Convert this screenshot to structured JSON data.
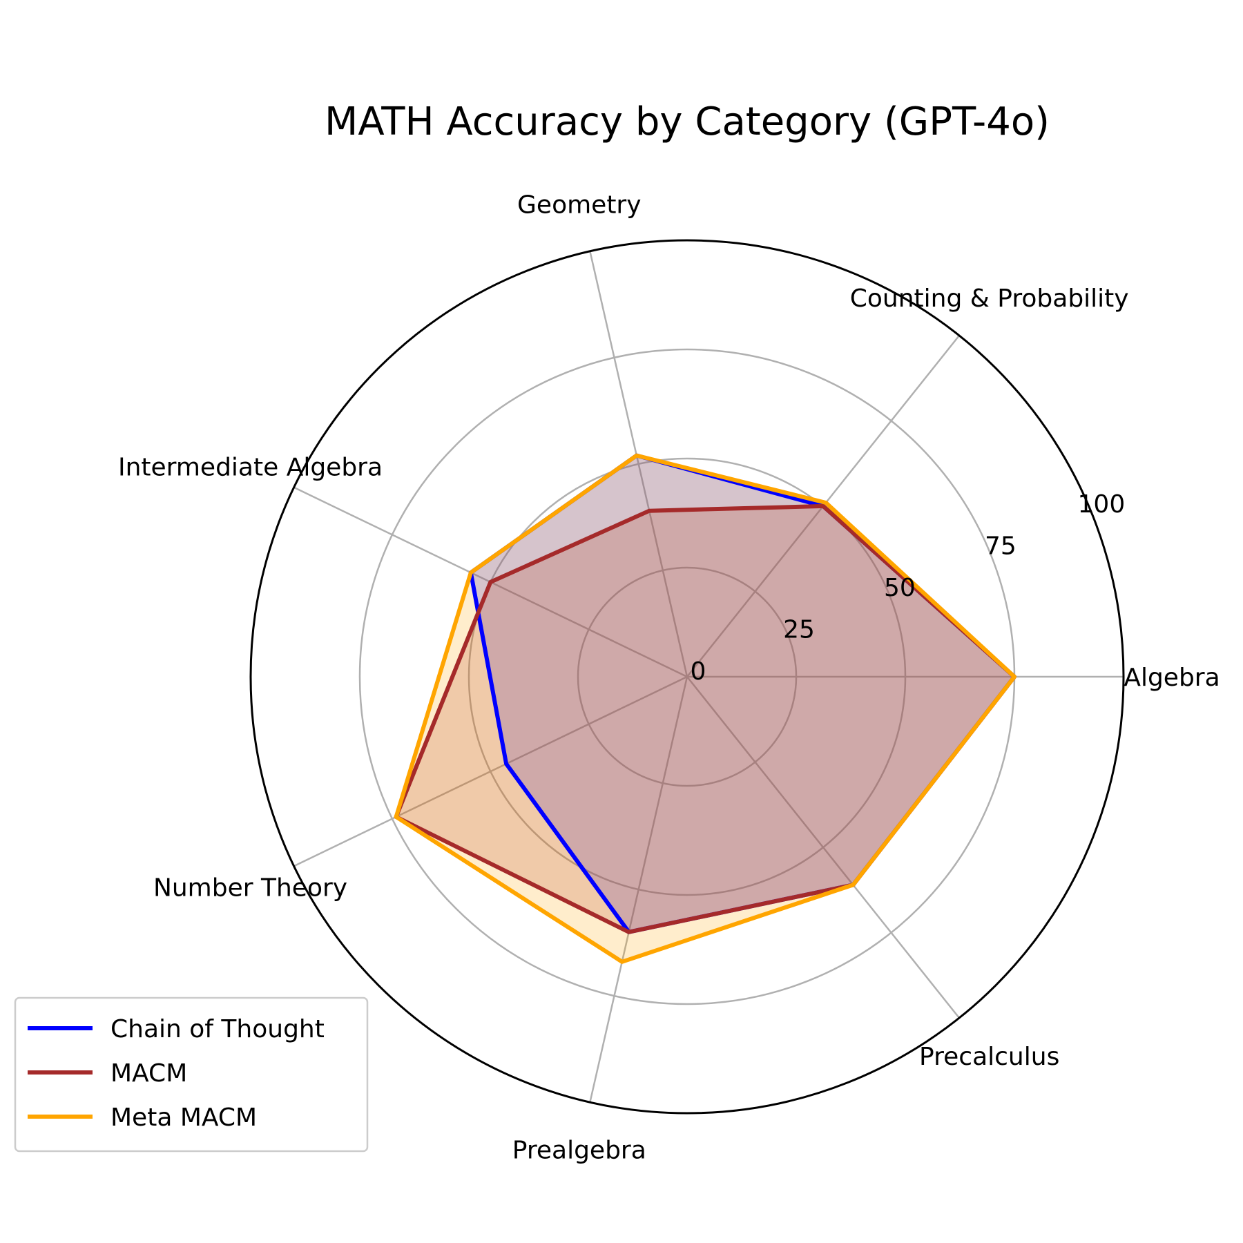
{
  "chart_data": {
    "type": "radar",
    "title": "MATH Accuracy by Category (GPT-4o)",
    "categories": [
      "Algebra",
      "Counting & Probability",
      "Geometry",
      "Intermediate Algebra",
      "Number Theory",
      "Prealgebra",
      "Precalculus"
    ],
    "rlim": [
      0,
      100
    ],
    "rticks": [
      "0",
      "25",
      "50",
      "75",
      "100"
    ],
    "grid": true,
    "legend_position": "lower-left",
    "series": [
      {
        "name": "Chain of Thought",
        "color": "#0000ff",
        "fill_opacity": 0.2,
        "values": [
          75,
          50,
          52,
          55,
          46,
          60,
          61
        ]
      },
      {
        "name": "MACM",
        "color": "#a52a2a",
        "fill_opacity": 0.2,
        "values": [
          75,
          50,
          39,
          50,
          74,
          60,
          61
        ]
      },
      {
        "name": "Meta MACM",
        "color": "#ffa500",
        "fill_opacity": 0.2,
        "values": [
          75,
          51,
          52,
          55,
          74,
          67,
          61
        ]
      }
    ]
  }
}
